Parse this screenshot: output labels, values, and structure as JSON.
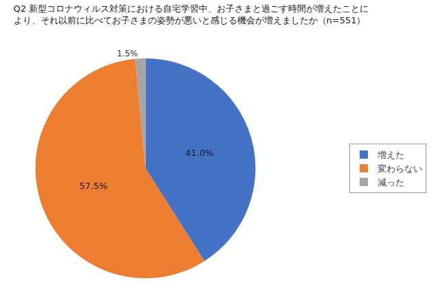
{
  "chart_data": {
    "type": "pie",
    "title": "Q2 新型コロナウィルス対策における自宅学習中、お子さまと過ごす時間が増えたことに",
    "subtitle": "より、それ以前に比べてお子さまの姿勢が悪いと感じる機会が増えましたか（n=551）",
    "categories": [
      "増えた",
      "変わらない",
      "減った"
    ],
    "values": [
      41.0,
      57.5,
      1.5
    ],
    "value_labels": [
      "41.0%",
      "57.5%",
      "1.5%"
    ],
    "colors": [
      "#4472C4",
      "#ED7D31",
      "#A5A5A5"
    ],
    "data_labels": true,
    "legend": "right"
  }
}
